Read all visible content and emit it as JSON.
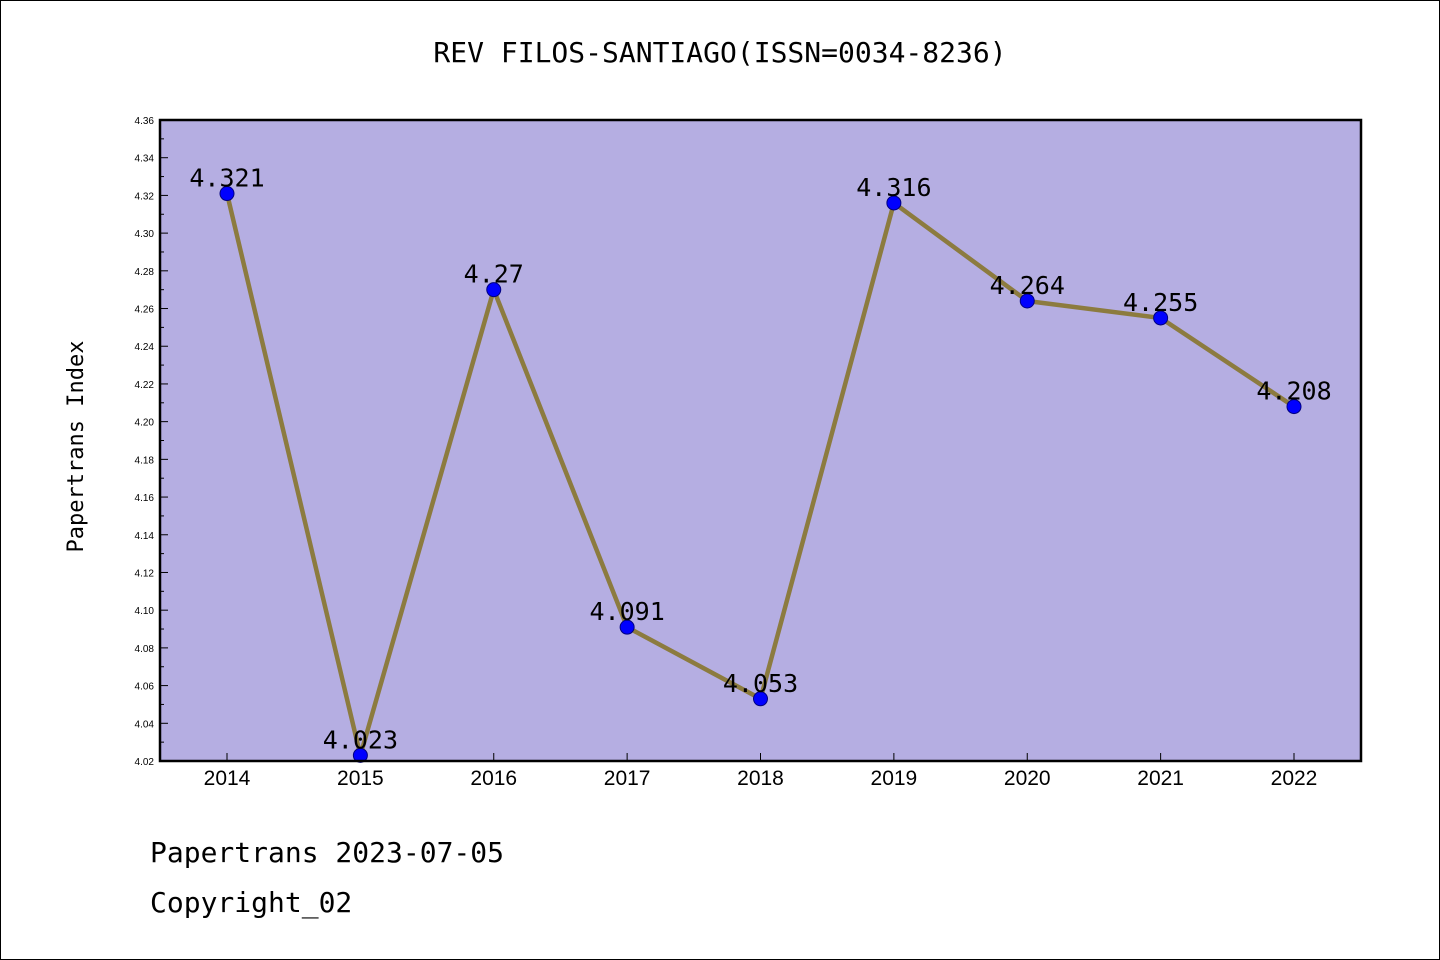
{
  "footer": {
    "line1": "Papertrans 2023-07-05",
    "line2": "Copyright_02"
  },
  "colors": {
    "plot_background": "#b5aee2",
    "line": "#8c7b3f",
    "marker": "#0000ff",
    "marker_edge": "#000080"
  },
  "chart_data": {
    "type": "line",
    "title": "REV FILOS-SANTIAGO(ISSN=0034-8236)",
    "xlabel": "",
    "ylabel": "Papertrans Index",
    "categories": [
      "2014",
      "2015",
      "2016",
      "2017",
      "2018",
      "2019",
      "2020",
      "2021",
      "2022"
    ],
    "series": [
      {
        "values": [
          4.321,
          4.023,
          4.27,
          4.091,
          4.053,
          4.316,
          4.264,
          4.255,
          4.208
        ],
        "labels": [
          "4.321",
          "4.023",
          "4.27",
          "4.091",
          "4.053",
          "4.316",
          "4.264",
          "4.255",
          "4.208"
        ]
      }
    ],
    "ylim": [
      4.02,
      4.36
    ],
    "yticks": [
      "4.02",
      "4.04",
      "4.06",
      "4.08",
      "4.10",
      "4.12",
      "4.14",
      "4.16",
      "4.18",
      "4.20",
      "4.22",
      "4.24",
      "4.26",
      "4.28",
      "4.30",
      "4.32",
      "4.34",
      "4.36"
    ],
    "grid": false,
    "legend": "none"
  }
}
